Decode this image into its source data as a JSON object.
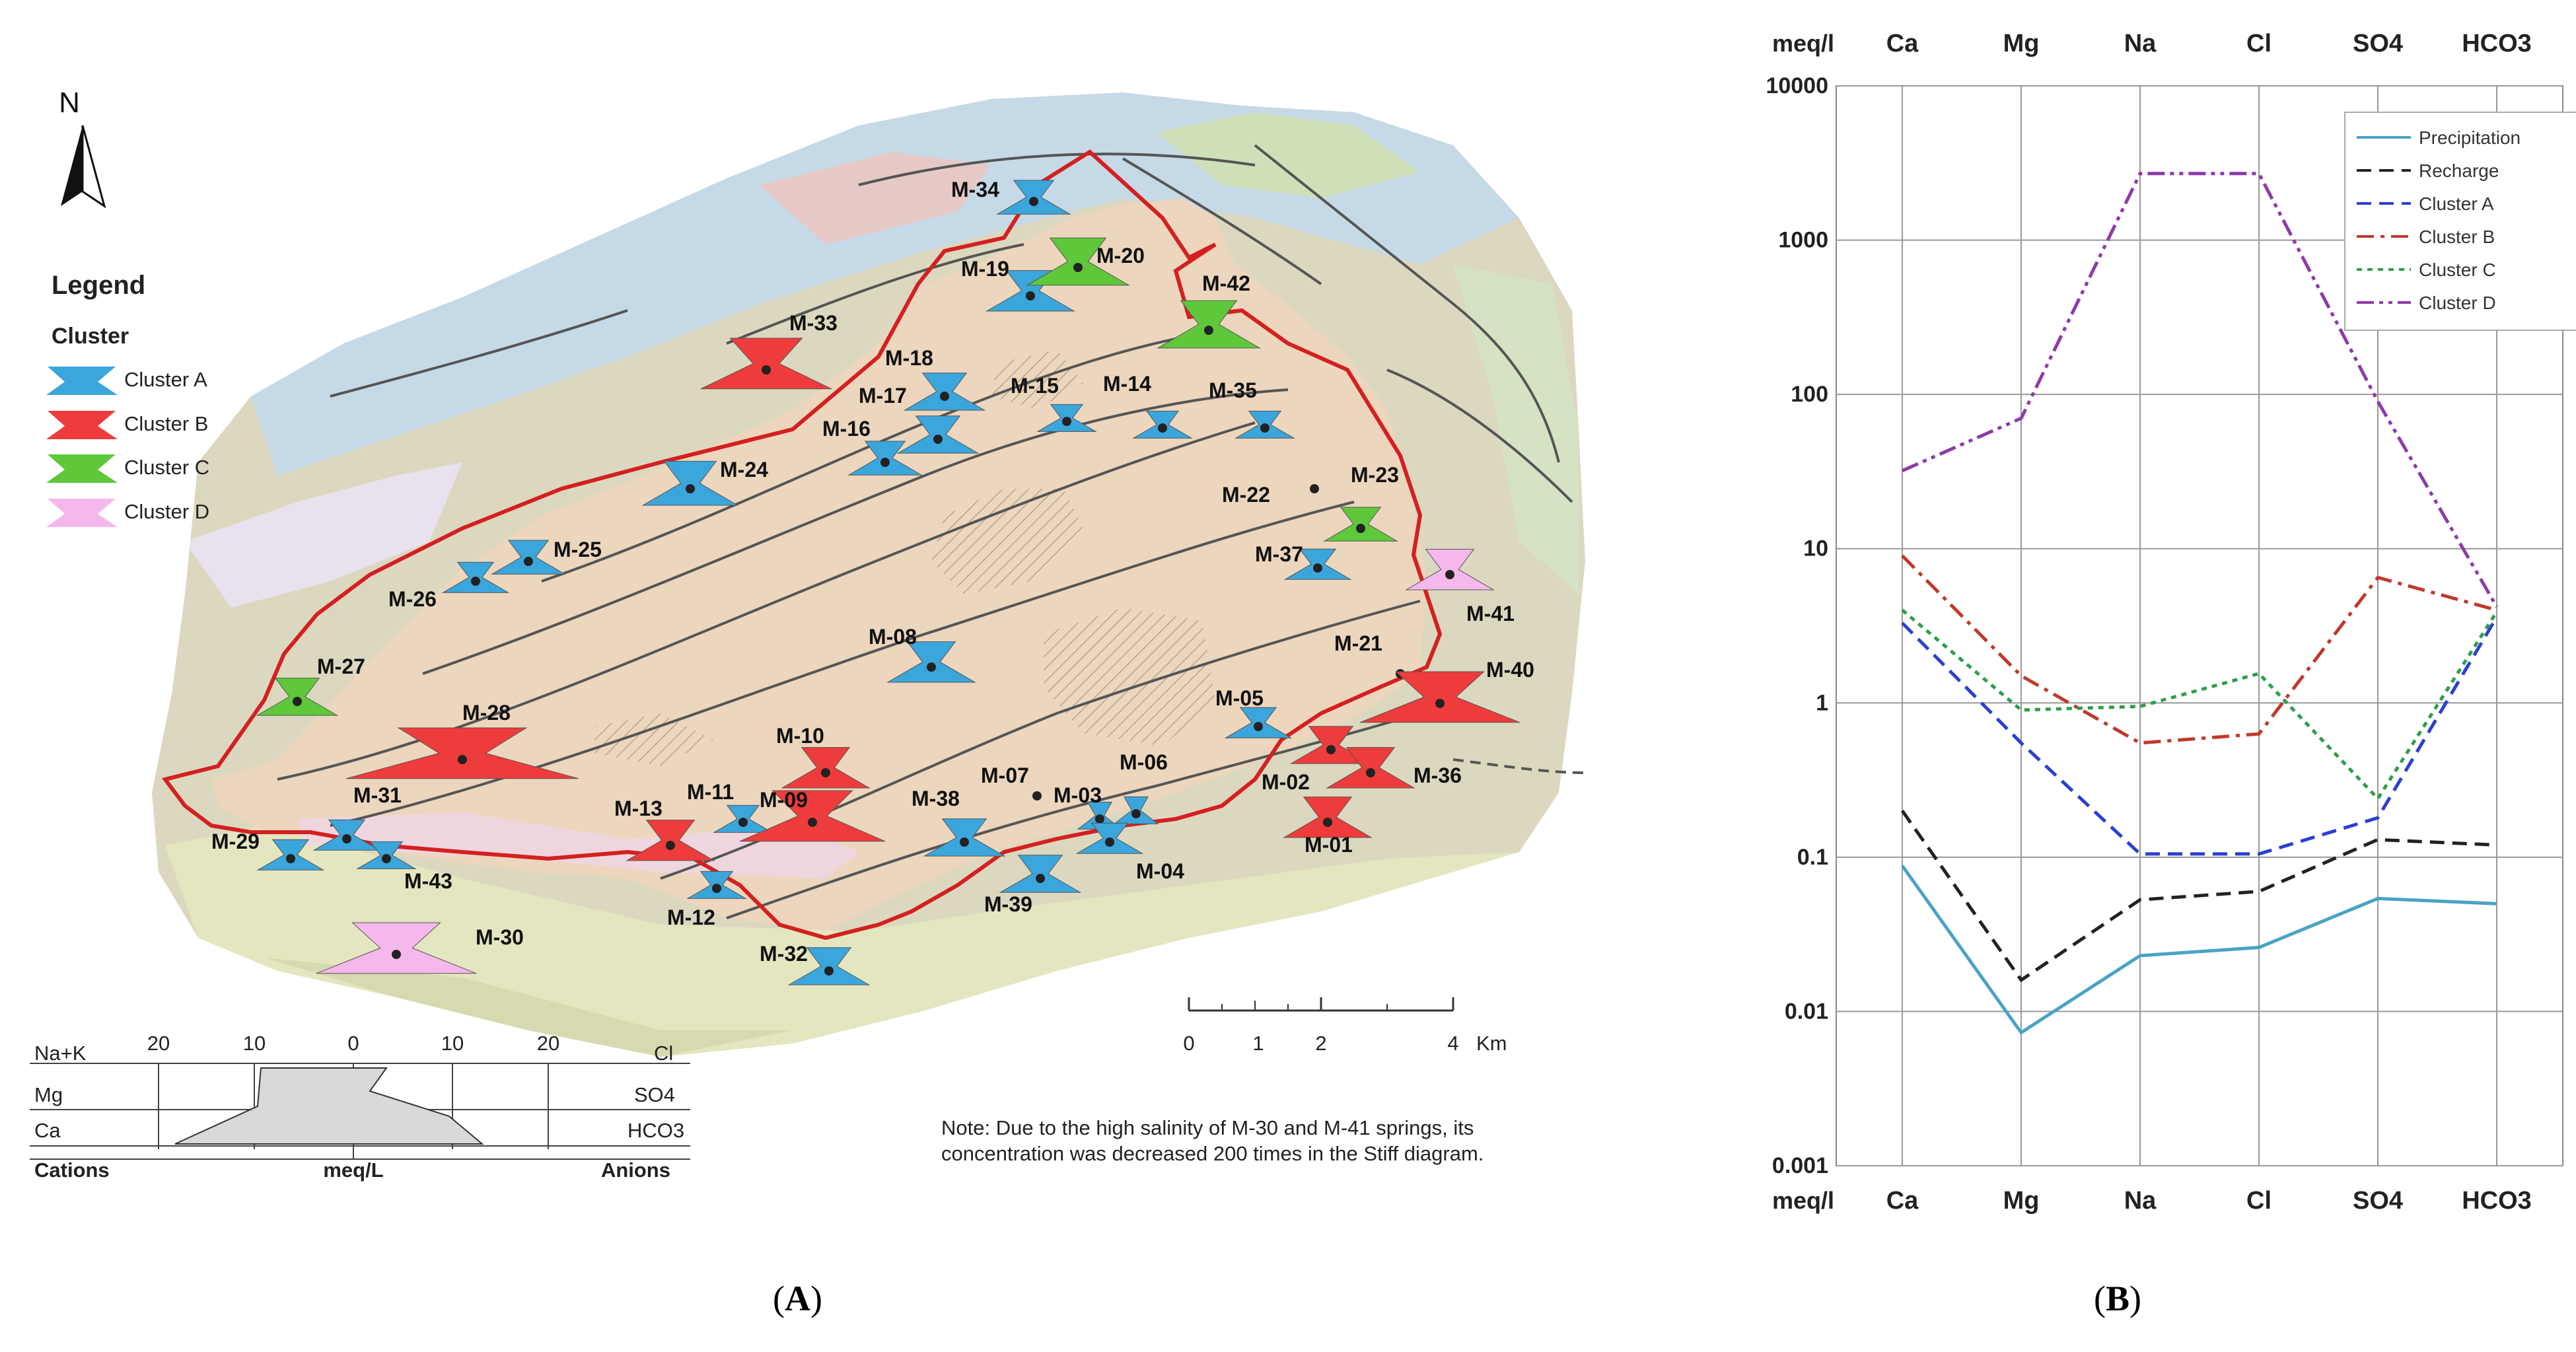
{
  "map": {
    "north_label": "N",
    "legend_title": "Legend",
    "legend_subtitle": "Cluster",
    "legend_items": [
      {
        "label": "Cluster A",
        "color": "#3aa6dc"
      },
      {
        "label": "Cluster B",
        "color": "#ee3b3b"
      },
      {
        "label": "Cluster C",
        "color": "#5ec83a"
      },
      {
        "label": "Cluster D",
        "color": "#f5b8ec"
      }
    ],
    "stiff_key": {
      "left_rows": [
        "Na+K",
        "Mg",
        "Ca"
      ],
      "right_rows": [
        "Cl",
        "SO4",
        "HCO3"
      ],
      "scale": [
        "20",
        "10",
        "0",
        "10",
        "20"
      ],
      "cations": "Cations",
      "unit": "meq/L",
      "anions": "Anions"
    },
    "scale_bar": {
      "ticks": [
        "0",
        "1",
        "2",
        "4"
      ],
      "unit": "Km"
    },
    "note_line1": "Note: Due to the high salinity of M-30 and M-41 springs, its",
    "note_line2": "concentration was decreased 200 times in the Stiff diagram.",
    "springs": [
      {
        "id": "M-34",
        "cluster": "A"
      },
      {
        "id": "M-19",
        "cluster": "A"
      },
      {
        "id": "M-20",
        "cluster": "C"
      },
      {
        "id": "M-42",
        "cluster": "C"
      },
      {
        "id": "M-33",
        "cluster": "B"
      },
      {
        "id": "M-18",
        "cluster": "A"
      },
      {
        "id": "M-17",
        "cluster": "A"
      },
      {
        "id": "M-16",
        "cluster": "A"
      },
      {
        "id": "M-15",
        "cluster": "A"
      },
      {
        "id": "M-14",
        "cluster": "A"
      },
      {
        "id": "M-35",
        "cluster": "A"
      },
      {
        "id": "M-24",
        "cluster": "A"
      },
      {
        "id": "M-23",
        "cluster": "C"
      },
      {
        "id": "M-22",
        "cluster": "A"
      },
      {
        "id": "M-25",
        "cluster": "A"
      },
      {
        "id": "M-26",
        "cluster": "A"
      },
      {
        "id": "M-37",
        "cluster": "A"
      },
      {
        "id": "M-41",
        "cluster": "D"
      },
      {
        "id": "M-27",
        "cluster": "C"
      },
      {
        "id": "M-08",
        "cluster": "A"
      },
      {
        "id": "M-21",
        "cluster": "B"
      },
      {
        "id": "M-40",
        "cluster": "B"
      },
      {
        "id": "M-28",
        "cluster": "B"
      },
      {
        "id": "M-10",
        "cluster": "B"
      },
      {
        "id": "M-05",
        "cluster": "A"
      },
      {
        "id": "M-02",
        "cluster": "B"
      },
      {
        "id": "M-36",
        "cluster": "B"
      },
      {
        "id": "M-07",
        "cluster": "A"
      },
      {
        "id": "M-06",
        "cluster": "A"
      },
      {
        "id": "M-11",
        "cluster": "A"
      },
      {
        "id": "M-09",
        "cluster": "B"
      },
      {
        "id": "M-03",
        "cluster": "A"
      },
      {
        "id": "M-31",
        "cluster": "A"
      },
      {
        "id": "M-13",
        "cluster": "B"
      },
      {
        "id": "M-38",
        "cluster": "A"
      },
      {
        "id": "M-01",
        "cluster": "B"
      },
      {
        "id": "M-29",
        "cluster": "A"
      },
      {
        "id": "M-04",
        "cluster": "A"
      },
      {
        "id": "M-43",
        "cluster": "A"
      },
      {
        "id": "M-12",
        "cluster": "A"
      },
      {
        "id": "M-39",
        "cluster": "A"
      },
      {
        "id": "M-32",
        "cluster": "A"
      },
      {
        "id": "M-30",
        "cluster": "D"
      }
    ]
  },
  "panel_a_label": "A",
  "panel_b_label": "B",
  "chart_data": {
    "type": "line",
    "categories": [
      "Ca",
      "Mg",
      "Na",
      "Cl",
      "SO4",
      "HCO3"
    ],
    "unit_label": "meq/l",
    "y_scale": "log",
    "ylim": [
      0.001,
      10000
    ],
    "y_ticks": [
      "10000",
      "1000",
      "100",
      "10",
      "1",
      "0.1",
      "0.01",
      "0.001"
    ],
    "grid": true,
    "legend_position": "top-right",
    "series": [
      {
        "name": "Precipitation",
        "color": "#4aa3c4",
        "dash": "solid",
        "values": [
          0.088,
          0.0073,
          0.023,
          0.026,
          0.054,
          0.05
        ]
      },
      {
        "name": "Recharge",
        "color": "#222222",
        "dash": "dashed",
        "values": [
          0.2,
          0.016,
          0.053,
          0.06,
          0.13,
          0.12
        ]
      },
      {
        "name": "Cluster A",
        "color": "#2b3fd4",
        "dash": "dashed",
        "values": [
          3.3,
          0.55,
          0.105,
          0.105,
          0.18,
          3.6
        ]
      },
      {
        "name": "Cluster B",
        "color": "#c0392b",
        "dash": "dashdot",
        "values": [
          9.0,
          1.5,
          0.55,
          0.63,
          6.5,
          4.0
        ]
      },
      {
        "name": "Cluster C",
        "color": "#2e9e4a",
        "dash": "dotted",
        "values": [
          4.0,
          0.9,
          0.95,
          1.55,
          0.24,
          3.9
        ]
      },
      {
        "name": "Cluster D",
        "color": "#8e3aa8",
        "dash": "dashdotdot",
        "values": [
          32,
          70,
          2700,
          2700,
          90,
          4.2
        ]
      }
    ]
  }
}
